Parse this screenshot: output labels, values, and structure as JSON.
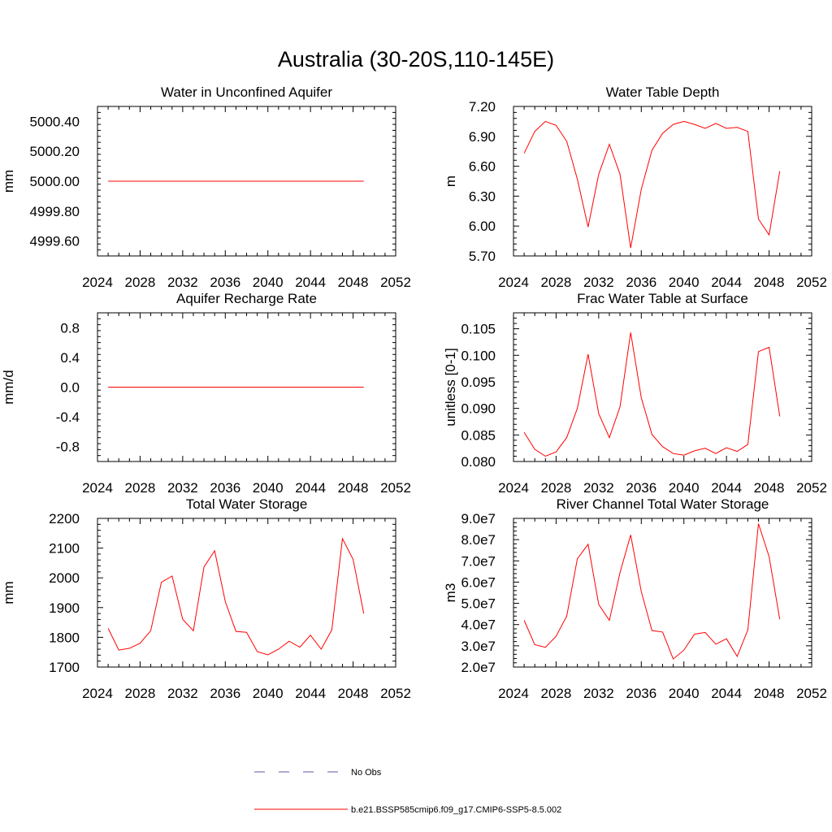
{
  "figure_title": "Australia (30-20S,110-145E)",
  "colors": {
    "model": "#ff0000",
    "obs": "#5a5aa8",
    "axis": "#000000"
  },
  "legend": {
    "obs_label": "No Obs",
    "model_label": "b.e21.BSSP585cmip6.f09_g17.CMIP6-SSP5-8.5.002"
  },
  "chart_data": [
    {
      "type": "line",
      "title": "Water in Unconfined Aquifer",
      "ylabel": "mm",
      "xlim": [
        2024,
        2052
      ],
      "ylim": [
        4999.5,
        5000.5
      ],
      "xticks": [
        2024,
        2028,
        2032,
        2036,
        2040,
        2044,
        2048,
        2052
      ],
      "xtick_labels": [
        "2024",
        "2028",
        "2032",
        "2036",
        "2040",
        "2044",
        "2048",
        "2052"
      ],
      "yticks": [
        4999.6,
        4999.8,
        5000.0,
        5000.2,
        5000.4
      ],
      "ytick_labels": [
        "4999.60",
        "4999.80",
        "5000.00",
        "5000.20",
        "5000.40"
      ],
      "x": [
        2025,
        2026,
        2027,
        2028,
        2029,
        2030,
        2031,
        2032,
        2033,
        2034,
        2035,
        2036,
        2037,
        2038,
        2039,
        2040,
        2041,
        2042,
        2043,
        2044,
        2045,
        2046,
        2047,
        2048,
        2049
      ],
      "series": [
        {
          "values": [
            5000,
            5000,
            5000,
            5000,
            5000,
            5000,
            5000,
            5000,
            5000,
            5000,
            5000,
            5000,
            5000,
            5000,
            5000,
            5000,
            5000,
            5000,
            5000,
            5000,
            5000,
            5000,
            5000,
            5000,
            5000
          ]
        }
      ]
    },
    {
      "type": "line",
      "title": "Water Table Depth",
      "ylabel": "m",
      "xlim": [
        2024,
        2052
      ],
      "ylim": [
        5.7,
        7.2
      ],
      "xticks": [
        2024,
        2028,
        2032,
        2036,
        2040,
        2044,
        2048,
        2052
      ],
      "xtick_labels": [
        "2024",
        "2028",
        "2032",
        "2036",
        "2040",
        "2044",
        "2048",
        "2052"
      ],
      "yticks": [
        5.7,
        6.0,
        6.3,
        6.6,
        6.9,
        7.2
      ],
      "ytick_labels": [
        "5.70",
        "6.00",
        "6.30",
        "6.60",
        "6.90",
        "7.20"
      ],
      "x": [
        2025,
        2026,
        2027,
        2028,
        2029,
        2030,
        2031,
        2032,
        2033,
        2034,
        2035,
        2036,
        2037,
        2038,
        2039,
        2040,
        2041,
        2042,
        2043,
        2044,
        2045,
        2046,
        2047,
        2048,
        2049
      ],
      "series": [
        {
          "values": [
            6.73,
            6.95,
            7.05,
            7.01,
            6.85,
            6.47,
            5.99,
            6.52,
            6.82,
            6.52,
            5.78,
            6.37,
            6.76,
            6.93,
            7.02,
            7.05,
            7.02,
            6.98,
            7.03,
            6.98,
            6.99,
            6.95,
            6.07,
            5.91,
            6.55
          ]
        }
      ]
    },
    {
      "type": "line",
      "title": "Aquifer Recharge Rate",
      "ylabel": "mm/d",
      "xlim": [
        2024,
        2052
      ],
      "ylim": [
        -1.0,
        1.0
      ],
      "xticks": [
        2024,
        2028,
        2032,
        2036,
        2040,
        2044,
        2048,
        2052
      ],
      "xtick_labels": [
        "2024",
        "2028",
        "2032",
        "2036",
        "2040",
        "2044",
        "2048",
        "2052"
      ],
      "yticks": [
        -0.8,
        -0.4,
        0.0,
        0.4,
        0.8
      ],
      "ytick_labels": [
        "-0.8",
        "-0.4",
        "0.0",
        "0.4",
        "0.8"
      ],
      "x": [
        2025,
        2026,
        2027,
        2028,
        2029,
        2030,
        2031,
        2032,
        2033,
        2034,
        2035,
        2036,
        2037,
        2038,
        2039,
        2040,
        2041,
        2042,
        2043,
        2044,
        2045,
        2046,
        2047,
        2048,
        2049
      ],
      "series": [
        {
          "values": [
            0,
            0,
            0,
            0,
            0,
            0,
            0,
            0,
            0,
            0,
            0,
            0,
            0,
            0,
            0,
            0,
            0,
            0,
            0,
            0,
            0,
            0,
            0,
            0,
            0
          ]
        }
      ]
    },
    {
      "type": "line",
      "title": "Frac Water Table at Surface",
      "ylabel": "unitless [0-1]",
      "xlim": [
        2024,
        2052
      ],
      "ylim": [
        0.08,
        0.108
      ],
      "xticks": [
        2024,
        2028,
        2032,
        2036,
        2040,
        2044,
        2048,
        2052
      ],
      "xtick_labels": [
        "2024",
        "2028",
        "2032",
        "2036",
        "2040",
        "2044",
        "2048",
        "2052"
      ],
      "yticks": [
        0.08,
        0.085,
        0.09,
        0.095,
        0.1,
        0.105
      ],
      "ytick_labels": [
        "0.080",
        "0.085",
        "0.090",
        "0.095",
        "0.100",
        "0.105"
      ],
      "x": [
        2025,
        2026,
        2027,
        2028,
        2029,
        2030,
        2031,
        2032,
        2033,
        2034,
        2035,
        2036,
        2037,
        2038,
        2039,
        2040,
        2041,
        2042,
        2043,
        2044,
        2045,
        2046,
        2047,
        2048,
        2049
      ],
      "series": [
        {
          "values": [
            0.0855,
            0.0823,
            0.081,
            0.0818,
            0.0845,
            0.09,
            0.1002,
            0.089,
            0.0845,
            0.0903,
            0.1043,
            0.092,
            0.0851,
            0.0828,
            0.0815,
            0.0812,
            0.082,
            0.0825,
            0.0815,
            0.0826,
            0.0819,
            0.0832,
            0.1007,
            0.1015,
            0.0885
          ]
        }
      ]
    },
    {
      "type": "line",
      "title": "Total Water Storage",
      "ylabel": "mm",
      "xlim": [
        2024,
        2052
      ],
      "ylim": [
        1700,
        2200
      ],
      "xticks": [
        2024,
        2028,
        2032,
        2036,
        2040,
        2044,
        2048,
        2052
      ],
      "xtick_labels": [
        "2024",
        "2028",
        "2032",
        "2036",
        "2040",
        "2044",
        "2048",
        "2052"
      ],
      "yticks": [
        1700,
        1800,
        1900,
        2000,
        2100,
        2200
      ],
      "ytick_labels": [
        "1700",
        "1800",
        "1900",
        "2000",
        "2100",
        "2200"
      ],
      "x": [
        2025,
        2026,
        2027,
        2028,
        2029,
        2030,
        2031,
        2032,
        2033,
        2034,
        2035,
        2036,
        2037,
        2038,
        2039,
        2040,
        2041,
        2042,
        2043,
        2044,
        2045,
        2046,
        2047,
        2048,
        2049
      ],
      "series": [
        {
          "values": [
            1830,
            1757,
            1763,
            1780,
            1822,
            1985,
            2006,
            1860,
            1822,
            2037,
            2091,
            1920,
            1820,
            1817,
            1752,
            1741,
            1760,
            1787,
            1767,
            1807,
            1760,
            1825,
            2132,
            2062,
            1880
          ]
        }
      ]
    },
    {
      "type": "line",
      "title": "River Channel Total Water Storage",
      "ylabel": "m3",
      "xlim": [
        2024,
        2052
      ],
      "ylim": [
        20000000.0,
        90000000.0
      ],
      "xticks": [
        2024,
        2028,
        2032,
        2036,
        2040,
        2044,
        2048,
        2052
      ],
      "xtick_labels": [
        "2024",
        "2028",
        "2032",
        "2036",
        "2040",
        "2044",
        "2048",
        "2052"
      ],
      "yticks": [
        20000000.0,
        30000000.0,
        40000000.0,
        50000000.0,
        60000000.0,
        70000000.0,
        80000000.0,
        90000000.0
      ],
      "ytick_labels": [
        "2.0e7",
        "3.0e7",
        "4.0e7",
        "5.0e7",
        "6.0e7",
        "7.0e7",
        "8.0e7",
        "9.0e7"
      ],
      "x": [
        2025,
        2026,
        2027,
        2028,
        2029,
        2030,
        2031,
        2032,
        2033,
        2034,
        2035,
        2036,
        2037,
        2038,
        2039,
        2040,
        2041,
        2042,
        2043,
        2044,
        2045,
        2046,
        2047,
        2048,
        2049
      ],
      "series": [
        {
          "values": [
            42000000.0,
            30500000.0,
            29300000.0,
            34500000.0,
            44000000.0,
            71000000.0,
            77800000.0,
            49500000.0,
            42000000.0,
            64500000.0,
            82200000.0,
            55500000.0,
            37200000.0,
            36500000.0,
            23800000.0,
            28000000.0,
            35500000.0,
            36300000.0,
            30800000.0,
            33300000.0,
            25000000.0,
            37500000.0,
            87500000.0,
            72000000.0,
            42500000.0
          ]
        }
      ]
    }
  ]
}
